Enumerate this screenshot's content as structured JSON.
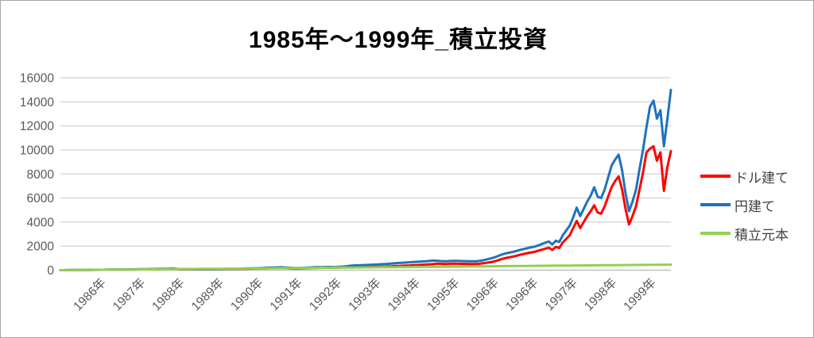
{
  "title": "1985年～1999年_積立投資",
  "colors": {
    "dollar": "#FF0000",
    "yen": "#1F72BE",
    "principal": "#92D050",
    "gridline": "#D9D9D9",
    "axis_line": "#BFBFBF",
    "axis_text": "#595959",
    "legend_text": "#404040"
  },
  "legend": {
    "items": [
      {
        "key": "dollar",
        "label": "ドル建て"
      },
      {
        "key": "yen",
        "label": "円建て"
      },
      {
        "key": "principal",
        "label": "積立元本"
      }
    ]
  },
  "y_axis": {
    "tick_values": [
      0,
      2000,
      4000,
      6000,
      8000,
      10000,
      12000,
      14000,
      16000
    ],
    "tick_labels": [
      "0",
      "2000",
      "4000",
      "6000",
      "8000",
      "10000",
      "12000",
      "14000",
      "16000"
    ]
  },
  "x_axis": {
    "labels": [
      "1986年",
      "1987年",
      "1988年",
      "1989年",
      "1990年",
      "1991年",
      "1992年",
      "1993年",
      "1994年",
      "1995年",
      "1996年",
      "1996年",
      "1997年",
      "1998年",
      "1999年"
    ]
  },
  "chart_data": {
    "type": "line",
    "title": "1985年～1999年_積立投資",
    "x_description": "monthly points from 1985 to mid-1999, values estimated from pixels",
    "x_tick_labels": [
      "1986年",
      "1987年",
      "1988年",
      "1989年",
      "1990年",
      "1991年",
      "1992年",
      "1993年",
      "1994年",
      "1995年",
      "1996年",
      "1996年",
      "1997年",
      "1998年",
      "1999年"
    ],
    "ylim": [
      0,
      16000
    ],
    "grid": true,
    "legend_position": "right",
    "series": [
      {
        "name": "ドル建て",
        "key": "dollar",
        "color": "#FF0000",
        "values": [
          0,
          3,
          6,
          9,
          11,
          14,
          17,
          20,
          23,
          25,
          28,
          31,
          32,
          35,
          38,
          41,
          44,
          47,
          50,
          53,
          56,
          59,
          62,
          66,
          70,
          74,
          79,
          84,
          89,
          94,
          99,
          104,
          110,
          107,
          62,
          67,
          68,
          70,
          72,
          74,
          73,
          76,
          78,
          77,
          80,
          84,
          88,
          92,
          96,
          101,
          106,
          111,
          116,
          122,
          128,
          134,
          140,
          146,
          152,
          158,
          165,
          172,
          178,
          183,
          178,
          168,
          155,
          148,
          143,
          152,
          162,
          172,
          185,
          194,
          200,
          197,
          204,
          210,
          207,
          213,
          220,
          228,
          236,
          242,
          245,
          252,
          248,
          255,
          262,
          268,
          275,
          282,
          290,
          300,
          312,
          326,
          340,
          352,
          364,
          378,
          392,
          406,
          422,
          438,
          452,
          468,
          490,
          515,
          545,
          525,
          515,
          520,
          532,
          540,
          535,
          527,
          520,
          514,
          512,
          505,
          530,
          570,
          610,
          650,
          700,
          780,
          880,
          960,
          1030,
          1090,
          1140,
          1220,
          1300,
          1360,
          1420,
          1480,
          1530,
          1620,
          1700,
          1790,
          1870,
          1680,
          1930,
          1850,
          2300,
          2600,
          2900,
          3500,
          4100,
          3500,
          4000,
          4500,
          4900,
          5400,
          4800,
          4700,
          5300,
          6100,
          6900,
          7400,
          7800,
          6700,
          5100,
          3800,
          4500,
          5300,
          6700,
          8100,
          9800,
          10100,
          10300,
          9100,
          9800,
          6600,
          8600,
          9900
        ]
      },
      {
        "name": "円建て",
        "key": "yen",
        "color": "#1F72BE",
        "values": [
          0,
          3,
          7,
          10,
          12,
          16,
          19,
          21,
          25,
          28,
          30,
          34,
          36,
          40,
          43,
          47,
          50,
          54,
          57,
          60,
          64,
          68,
          72,
          76,
          80,
          85,
          91,
          97,
          103,
          109,
          114,
          120,
          125,
          122,
          70,
          76,
          78,
          80,
          83,
          85,
          84,
          86,
          88,
          87,
          90,
          93,
          96,
          100,
          104,
          110,
          117,
          124,
          131,
          139,
          147,
          155,
          163,
          172,
          181,
          195,
          210,
          220,
          228,
          235,
          230,
          215,
          195,
          180,
          172,
          185,
          200,
          215,
          230,
          242,
          251,
          247,
          256,
          263,
          259,
          267,
          276,
          295,
          325,
          360,
          390,
          400,
          410,
          422,
          434,
          448,
          462,
          476,
          492,
          510,
          530,
          555,
          580,
          598,
          615,
          633,
          652,
          670,
          690,
          708,
          725,
          742,
          770,
          800,
          785,
          758,
          744,
          752,
          768,
          780,
          772,
          760,
          750,
          742,
          738,
          730,
          770,
          820,
          880,
          950,
          1030,
          1120,
          1250,
          1340,
          1420,
          1480,
          1540,
          1620,
          1700,
          1770,
          1840,
          1910,
          1960,
          2060,
          2170,
          2290,
          2380,
          2140,
          2450,
          2350,
          2900,
          3300,
          3700,
          4400,
          5200,
          4500,
          5100,
          5700,
          6200,
          6900,
          6100,
          6000,
          6700,
          7700,
          8700,
          9200,
          9600,
          8300,
          6400,
          4900,
          5700,
          6700,
          8400,
          10000,
          11900,
          13600,
          14100,
          12600,
          13300,
          10300,
          12600,
          15000
        ]
      },
      {
        "name": "積立元本",
        "key": "principal",
        "color": "#92D050",
        "values": [
          0,
          3,
          5,
          8,
          11,
          13,
          16,
          18,
          21,
          24,
          26,
          29,
          32,
          34,
          37,
          39,
          42,
          45,
          47,
          50,
          53,
          55,
          58,
          60,
          63,
          66,
          68,
          71,
          74,
          76,
          79,
          81,
          84,
          87,
          89,
          92,
          95,
          97,
          100,
          103,
          105,
          108,
          110,
          113,
          116,
          118,
          121,
          124,
          126,
          129,
          131,
          134,
          137,
          139,
          142,
          145,
          147,
          150,
          152,
          155,
          158,
          160,
          163,
          166,
          168,
          171,
          173,
          176,
          179,
          181,
          184,
          187,
          189,
          192,
          194,
          197,
          200,
          202,
          205,
          208,
          210,
          213,
          215,
          218,
          221,
          223,
          226,
          229,
          231,
          234,
          237,
          239,
          242,
          244,
          247,
          250,
          252,
          255,
          257,
          260,
          263,
          265,
          268,
          271,
          273,
          276,
          278,
          281,
          284,
          286,
          289,
          292,
          294,
          297,
          299,
          302,
          305,
          307,
          310,
          313,
          315,
          318,
          320,
          323,
          326,
          328,
          331,
          334,
          336,
          339,
          341,
          344,
          347,
          349,
          352,
          355,
          357,
          360,
          362,
          365,
          368,
          370,
          373,
          376,
          378,
          381,
          383,
          386,
          389,
          391,
          394,
          397,
          399,
          402,
          404,
          407,
          410,
          412,
          415,
          418,
          420,
          423,
          425,
          428,
          431,
          433,
          436,
          439,
          441,
          444,
          446,
          449,
          452,
          454,
          457,
          460
        ]
      }
    ]
  }
}
